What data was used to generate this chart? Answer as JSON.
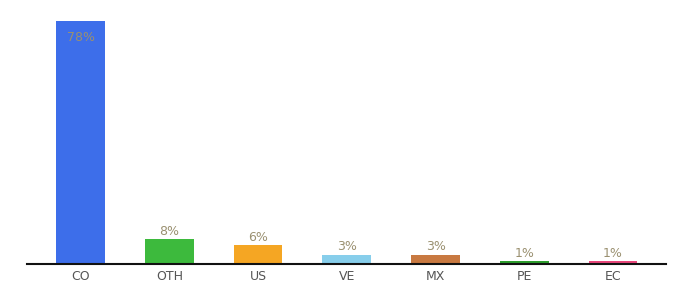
{
  "categories": [
    "CO",
    "OTH",
    "US",
    "VE",
    "MX",
    "PE",
    "EC"
  ],
  "values": [
    78,
    8,
    6,
    3,
    3,
    1,
    1
  ],
  "labels": [
    "78%",
    "8%",
    "6%",
    "3%",
    "3%",
    "1%",
    "1%"
  ],
  "bar_colors": [
    "#3d6eea",
    "#3dba3d",
    "#f5a623",
    "#87ceeb",
    "#c87941",
    "#2d9e2d",
    "#e8457a"
  ],
  "background_color": "#ffffff",
  "label_color": "#9a9070",
  "label_fontsize": 9,
  "xlabel_fontsize": 9,
  "ylim": [
    0,
    82
  ],
  "bar_width": 0.55,
  "fig_width": 6.8,
  "fig_height": 3.0,
  "dpi": 100
}
